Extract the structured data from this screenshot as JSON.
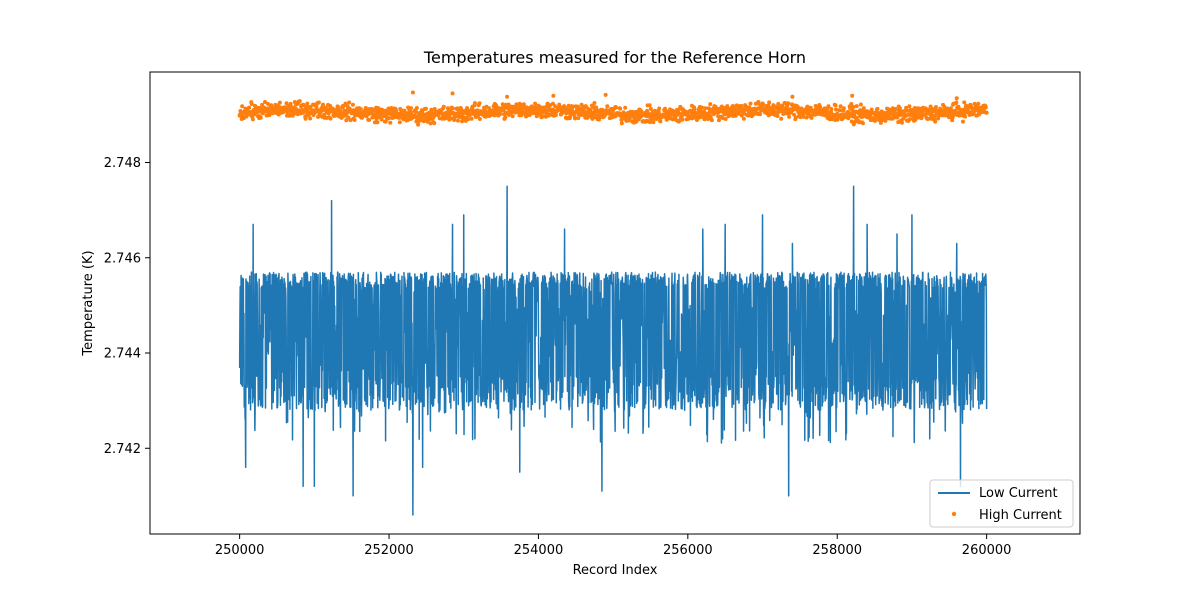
{
  "chart_data": {
    "type": "line",
    "title": "Temperatures measured for the Reference Horn",
    "xlabel": "Record Index",
    "ylabel": "Temperature (K)",
    "xlim": [
      248800,
      261250
    ],
    "ylim": [
      2.7402,
      2.7499
    ],
    "xticks": [
      250000,
      252000,
      254000,
      256000,
      258000,
      260000
    ],
    "xtick_labels": [
      "250000",
      "252000",
      "254000",
      "256000",
      "258000",
      "260000"
    ],
    "yticks": [
      2.742,
      2.744,
      2.746,
      2.748
    ],
    "ytick_labels": [
      "2.742",
      "2.744",
      "2.746",
      "2.748"
    ],
    "grid": false,
    "legend_position": "lower-right",
    "series": [
      {
        "name": "Low Current",
        "style": "line",
        "color": "#1f77b4",
        "x_range": [
          250000,
          260000
        ],
        "typical_min": 2.7428,
        "typical_max": 2.7457,
        "spikes_up": [
          [
            250180,
            2.7467
          ],
          [
            251230,
            2.7472
          ],
          [
            252850,
            2.7467
          ],
          [
            253000,
            2.7469
          ],
          [
            253580,
            2.7475
          ],
          [
            254350,
            2.7466
          ],
          [
            256200,
            2.7466
          ],
          [
            256500,
            2.7467
          ],
          [
            257000,
            2.7469
          ],
          [
            257400,
            2.7463
          ],
          [
            258220,
            2.7475
          ],
          [
            258400,
            2.7467
          ],
          [
            258800,
            2.7465
          ],
          [
            259000,
            2.7469
          ],
          [
            259600,
            2.7463
          ]
        ],
        "spikes_down": [
          [
            250080,
            2.7416
          ],
          [
            250850,
            2.7412
          ],
          [
            251000,
            2.7412
          ],
          [
            251520,
            2.741
          ],
          [
            252320,
            2.7406
          ],
          [
            252450,
            2.7416
          ],
          [
            253750,
            2.7415
          ],
          [
            254850,
            2.7411
          ],
          [
            257350,
            2.741
          ],
          [
            259650,
            2.7412
          ]
        ]
      },
      {
        "name": "High Current",
        "style": "scatter",
        "color": "#ff7f0e",
        "x_range": [
          250000,
          260000
        ],
        "typical_min": 2.74885,
        "typical_max": 2.74925,
        "spikes_up": [
          [
            252320,
            2.74947
          ],
          [
            252850,
            2.74945
          ],
          [
            253580,
            2.74938
          ],
          [
            254200,
            2.7494
          ],
          [
            254900,
            2.74942
          ],
          [
            257400,
            2.74938
          ],
          [
            258200,
            2.7494
          ],
          [
            259600,
            2.74935
          ]
        ]
      }
    ]
  }
}
